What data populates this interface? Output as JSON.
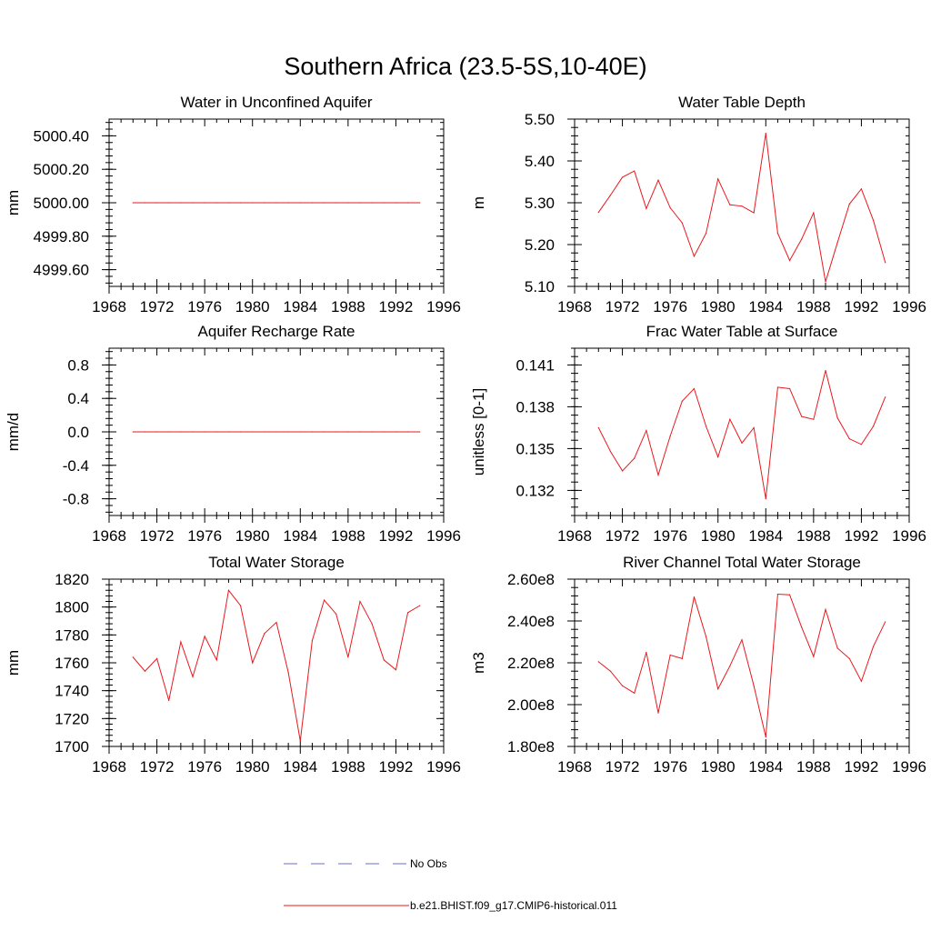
{
  "figure": {
    "title": "Southern Africa (23.5-5S,10-40E)"
  },
  "legend": {
    "obs_label": "No Obs",
    "model_label": "b.e21.BHIST.f09_g17.CMIP6-historical.011",
    "obs_color": "#6e6ec8",
    "model_color": "#e8191e"
  },
  "chart_data": [
    {
      "type": "line",
      "title": "Water in Unconfined Aquifer",
      "xlabel": "",
      "ylabel": "mm",
      "xlim": [
        1968,
        1996
      ],
      "ylim": [
        4999.5,
        5000.5
      ],
      "xticks": [
        1968,
        1972,
        1976,
        1980,
        1984,
        1988,
        1992,
        1996
      ],
      "yticks": [
        4999.6,
        4999.8,
        5000.0,
        5000.2,
        5000.4
      ],
      "ytick_labels": [
        "4999.60",
        "4999.80",
        "5000.00",
        "5000.20",
        "5000.40"
      ],
      "series": [
        {
          "x": [
            1970,
            1971,
            1972,
            1973,
            1974,
            1975,
            1976,
            1977,
            1978,
            1979,
            1980,
            1981,
            1982,
            1983,
            1984,
            1985,
            1986,
            1987,
            1988,
            1989,
            1990,
            1991,
            1992,
            1993,
            1994
          ],
          "values": [
            5000.0,
            5000.0,
            5000.0,
            5000.0,
            5000.0,
            5000.0,
            5000.0,
            5000.0,
            5000.0,
            5000.0,
            5000.0,
            5000.0,
            5000.0,
            5000.0,
            5000.0,
            5000.0,
            5000.0,
            5000.0,
            5000.0,
            5000.0,
            5000.0,
            5000.0,
            5000.0,
            5000.0,
            5000.0
          ]
        }
      ]
    },
    {
      "type": "line",
      "title": "Water Table Depth",
      "xlabel": "",
      "ylabel": "m",
      "xlim": [
        1968,
        1996
      ],
      "ylim": [
        5.1,
        5.5
      ],
      "xticks": [
        1968,
        1972,
        1976,
        1980,
        1984,
        1988,
        1992,
        1996
      ],
      "yticks": [
        5.1,
        5.2,
        5.3,
        5.4,
        5.5
      ],
      "ytick_labels": [
        "5.10",
        "5.20",
        "5.30",
        "5.40",
        "5.50"
      ],
      "series": [
        {
          "x": [
            1970,
            1971,
            1972,
            1973,
            1974,
            1975,
            1976,
            1977,
            1978,
            1979,
            1980,
            1981,
            1982,
            1983,
            1984,
            1985,
            1986,
            1987,
            1988,
            1989,
            1990,
            1991,
            1992,
            1993,
            1994
          ],
          "values": [
            5.277,
            5.318,
            5.361,
            5.376,
            5.286,
            5.354,
            5.288,
            5.252,
            5.172,
            5.227,
            5.357,
            5.295,
            5.292,
            5.276,
            5.466,
            5.227,
            5.162,
            5.213,
            5.276,
            5.111,
            5.205,
            5.297,
            5.333,
            5.258,
            5.157
          ]
        }
      ]
    },
    {
      "type": "line",
      "title": "Aquifer Recharge Rate",
      "xlabel": "",
      "ylabel": "mm/d",
      "xlim": [
        1968,
        1996
      ],
      "ylim": [
        -1.0,
        1.0
      ],
      "xticks": [
        1968,
        1972,
        1976,
        1980,
        1984,
        1988,
        1992,
        1996
      ],
      "yticks": [
        -0.8,
        -0.4,
        0.0,
        0.4,
        0.8
      ],
      "ytick_labels": [
        "-0.8",
        "-0.4",
        "0.0",
        "0.4",
        "0.8"
      ],
      "series": [
        {
          "x": [
            1970,
            1971,
            1972,
            1973,
            1974,
            1975,
            1976,
            1977,
            1978,
            1979,
            1980,
            1981,
            1982,
            1983,
            1984,
            1985,
            1986,
            1987,
            1988,
            1989,
            1990,
            1991,
            1992,
            1993,
            1994
          ],
          "values": [
            0,
            0,
            0,
            0,
            0,
            0,
            0,
            0,
            0,
            0,
            0,
            0,
            0,
            0,
            0,
            0,
            0,
            0,
            0,
            0,
            0,
            0,
            0,
            0,
            0
          ]
        }
      ]
    },
    {
      "type": "line",
      "title": "Frac Water Table at Surface",
      "xlabel": "",
      "ylabel": "unitless [0-1]",
      "xlim": [
        1968,
        1996
      ],
      "ylim": [
        0.1302,
        0.1422
      ],
      "xticks": [
        1968,
        1972,
        1976,
        1980,
        1984,
        1988,
        1992,
        1996
      ],
      "yticks": [
        0.132,
        0.135,
        0.138,
        0.141
      ],
      "ytick_labels": [
        "0.132",
        "0.135",
        "0.138",
        "0.141"
      ],
      "series": [
        {
          "x": [
            1970,
            1971,
            1972,
            1973,
            1974,
            1975,
            1976,
            1977,
            1978,
            1979,
            1980,
            1981,
            1982,
            1983,
            1984,
            1985,
            1986,
            1987,
            1988,
            1989,
            1990,
            1991,
            1992,
            1993,
            1994
          ],
          "values": [
            0.1365,
            0.1348,
            0.1334,
            0.1343,
            0.1363,
            0.1331,
            0.1359,
            0.1384,
            0.1393,
            0.1366,
            0.1344,
            0.1371,
            0.1354,
            0.1365,
            0.1314,
            0.1394,
            0.1393,
            0.1373,
            0.1371,
            0.1406,
            0.1372,
            0.1357,
            0.1353,
            0.1366,
            0.1387
          ]
        }
      ]
    },
    {
      "type": "line",
      "title": "Total Water Storage",
      "xlabel": "",
      "ylabel": "mm",
      "xlim": [
        1968,
        1996
      ],
      "ylim": [
        1700,
        1820
      ],
      "xticks": [
        1968,
        1972,
        1976,
        1980,
        1984,
        1988,
        1992,
        1996
      ],
      "yticks": [
        1700,
        1720,
        1740,
        1760,
        1780,
        1800,
        1820
      ],
      "ytick_labels": [
        "1700",
        "1720",
        "1740",
        "1760",
        "1780",
        "1800",
        "1820"
      ],
      "series": [
        {
          "x": [
            1970,
            1971,
            1972,
            1973,
            1974,
            1975,
            1976,
            1977,
            1978,
            1979,
            1980,
            1981,
            1982,
            1983,
            1984,
            1985,
            1986,
            1987,
            1988,
            1989,
            1990,
            1991,
            1992,
            1993,
            1994
          ],
          "values": [
            1764,
            1754,
            1763,
            1733,
            1775,
            1750,
            1779,
            1762,
            1812,
            1801,
            1760,
            1781,
            1789,
            1753,
            1704,
            1776,
            1805,
            1795,
            1764,
            1804,
            1788,
            1762,
            1755,
            1796,
            1801
          ]
        }
      ]
    },
    {
      "type": "line",
      "title": "River Channel Total Water Storage",
      "xlabel": "",
      "ylabel": "m3",
      "xlim": [
        1968,
        1996
      ],
      "ylim": [
        180000000,
        260000000
      ],
      "xticks": [
        1968,
        1972,
        1976,
        1980,
        1984,
        1988,
        1992,
        1996
      ],
      "yticks": [
        180000000,
        200000000,
        220000000,
        240000000,
        260000000
      ],
      "ytick_labels": [
        "1.80e8",
        "2.00e8",
        "2.20e8",
        "2.40e8",
        "2.60e8"
      ],
      "series": [
        {
          "x": [
            1970,
            1971,
            1972,
            1973,
            1974,
            1975,
            1976,
            1977,
            1978,
            1979,
            1980,
            1981,
            1982,
            1983,
            1984,
            1985,
            1986,
            1987,
            1988,
            1989,
            1990,
            1991,
            1992,
            1993,
            1994
          ],
          "values": [
            220500000,
            216000000,
            209000000,
            205500000,
            225000000,
            196000000,
            223700000,
            222000000,
            251500000,
            232500000,
            207500000,
            218500000,
            231000000,
            209000000,
            184500000,
            252800000,
            252500000,
            237000000,
            223000000,
            245500000,
            227000000,
            222000000,
            211200000,
            227800000,
            239600000
          ]
        }
      ]
    }
  ]
}
